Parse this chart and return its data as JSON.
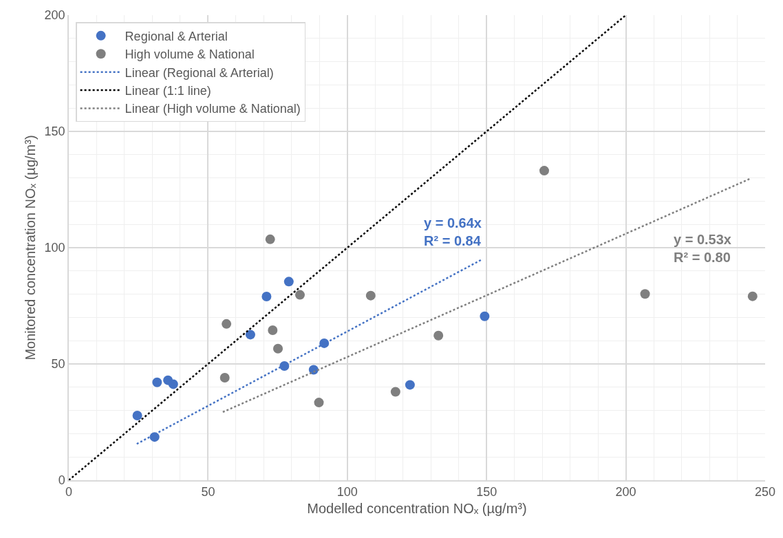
{
  "chart_data": {
    "type": "scatter",
    "xlabel": "Modelled concentration NOₓ (µg/m³)",
    "ylabel": "Monitored concentration NOₓ (µg/m³)",
    "xlim": [
      0,
      250
    ],
    "xticks": [
      0,
      50,
      100,
      150,
      200,
      250
    ],
    "ylim": [
      0,
      200
    ],
    "yticks": [
      0,
      50,
      100,
      150,
      200
    ],
    "grid": true,
    "legend": "top left",
    "marker": "circle",
    "series": [
      {
        "name": "Regional & Arterial",
        "color": "#4472c4",
        "x": [
          24.6,
          30.8,
          31.7,
          35.6,
          37.5,
          65.2,
          71.0,
          79.0,
          77.4,
          87.9,
          91.7,
          149.3,
          122.5
        ],
        "values": [
          27.8,
          18.6,
          42.1,
          43.0,
          41.3,
          62.6,
          79.0,
          85.4,
          49.1,
          47.5,
          58.9,
          70.5,
          41.0
        ]
      },
      {
        "name": "High volume & National",
        "color": "#7f7f7f",
        "x": [
          72.3,
          83.0,
          56.6,
          73.2,
          75.1,
          56.0,
          89.8,
          108.4,
          132.7,
          117.3,
          170.7,
          206.9,
          245.5
        ],
        "values": [
          103.6,
          79.7,
          67.2,
          64.5,
          56.6,
          44.1,
          33.4,
          79.4,
          62.2,
          38.0,
          133.1,
          80.1,
          79.1
        ]
      },
      {
        "name": "Linear (Regional & Arterial)",
        "type": "line",
        "color": "#4472c4",
        "line_style": "dotted",
        "marker": "none",
        "x": [
          24.4,
          148.6
        ],
        "values": [
          15.6,
          95.1
        ]
      },
      {
        "name": "Linear (1:1 line)",
        "type": "line",
        "color": "#000000",
        "line_style": "dotted",
        "marker": "none",
        "x": [
          0,
          200
        ],
        "values": [
          0,
          200
        ]
      },
      {
        "name": "Linear (High volume & National)",
        "type": "line",
        "color": "#7f7f7f",
        "line_style": "dotted",
        "marker": "none",
        "x": [
          55.3,
          244.5
        ],
        "values": [
          29.3,
          129.6
        ]
      }
    ],
    "annotations": [
      "y = 0.64x\nR² = 0.84",
      "y = 0.53x\nR² = 0.80"
    ]
  }
}
